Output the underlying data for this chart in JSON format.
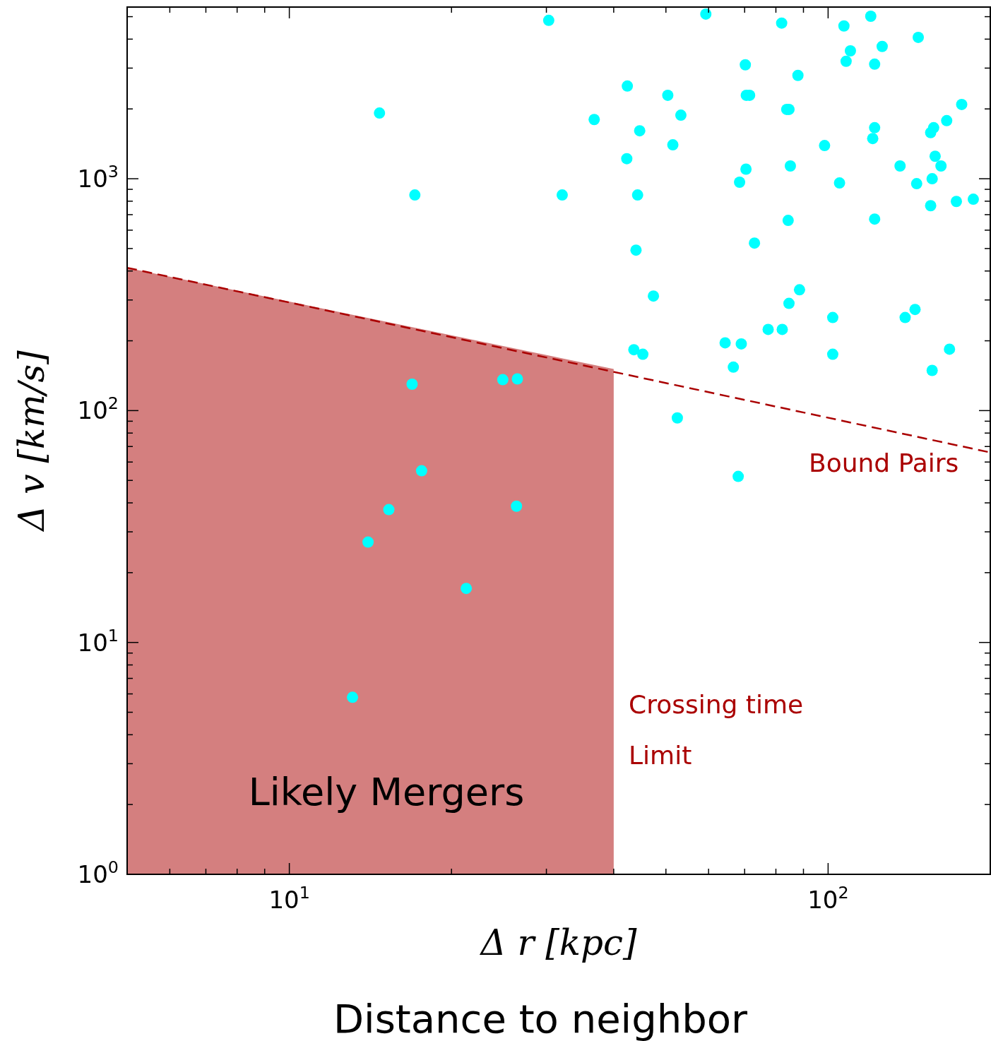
{
  "chart_data": {
    "type": "scatter",
    "xlabel": "Δ r [kpc]",
    "ylabel": "Δ v [km/s]",
    "xlim": [
      5,
      200
    ],
    "ylim": [
      1,
      5500
    ],
    "log": "xy",
    "grid": false,
    "xticks": [
      {
        "value": 6,
        "label": null
      },
      {
        "value": 7,
        "label": null
      },
      {
        "value": 8,
        "label": null
      },
      {
        "value": 9,
        "label": null
      },
      {
        "value": 10,
        "label": "10$^{1}$"
      },
      {
        "value": 20,
        "label": null
      },
      {
        "value": 30,
        "label": null
      },
      {
        "value": 40,
        "label": null
      },
      {
        "value": 50,
        "label": null
      },
      {
        "value": 60,
        "label": null
      },
      {
        "value": 70,
        "label": null
      },
      {
        "value": 80,
        "label": null
      },
      {
        "value": 90,
        "label": null
      },
      {
        "value": 100,
        "label": "10$^{2}$"
      }
    ],
    "yticks": [
      {
        "value": 1,
        "label": "10$^{0}$"
      },
      {
        "value": 2,
        "label": null
      },
      {
        "value": 3,
        "label": null
      },
      {
        "value": 4,
        "label": null
      },
      {
        "value": 5,
        "label": null
      },
      {
        "value": 6,
        "label": null
      },
      {
        "value": 7,
        "label": null
      },
      {
        "value": 8,
        "label": null
      },
      {
        "value": 9,
        "label": null
      },
      {
        "value": 10,
        "label": "10$^{1}$"
      },
      {
        "value": 20,
        "label": null
      },
      {
        "value": 30,
        "label": null
      },
      {
        "value": 40,
        "label": null
      },
      {
        "value": 50,
        "label": null
      },
      {
        "value": 60,
        "label": null
      },
      {
        "value": 70,
        "label": null
      },
      {
        "value": 80,
        "label": null
      },
      {
        "value": 90,
        "label": null
      },
      {
        "value": 100,
        "label": "10$^{2}$"
      },
      {
        "value": 200,
        "label": null
      },
      {
        "value": 300,
        "label": null
      },
      {
        "value": 400,
        "label": null
      },
      {
        "value": 500,
        "label": null
      },
      {
        "value": 600,
        "label": null
      },
      {
        "value": 700,
        "label": null
      },
      {
        "value": 800,
        "label": null
      },
      {
        "value": 900,
        "label": null
      },
      {
        "value": 1000,
        "label": "10$^{3}$"
      },
      {
        "value": 2000,
        "label": null
      },
      {
        "value": 3000,
        "label": null
      },
      {
        "value": 4000,
        "label": null
      },
      {
        "value": 5000,
        "label": null
      }
    ],
    "annotations": [
      "Likely Mergers",
      "Crossing time",
      "Limit",
      "Bound Pairs",
      "Distance to neighbor"
    ],
    "series": [
      {
        "type": "area",
        "color": "#d47f7f",
        "x": [
          5,
          40
        ],
        "values": [
          413,
          151
        ]
      },
      {
        "type": "line",
        "color": "#aa0000",
        "line_style": "dashed",
        "x": [
          5,
          200
        ],
        "values": [
          413,
          66
        ]
      },
      {
        "color": "#00ffff",
        "marker": "circle",
        "x": [
          14.7,
          17.1,
          30.3,
          32.1,
          36.8,
          42.4,
          42.3,
          44.7,
          44.3,
          44.0,
          47.4,
          43.6,
          45.3,
          50.4,
          51.5,
          53.3,
          52.5,
          59.3,
          64.4,
          66.7,
          68.5,
          69.0,
          68.1,
          70.2,
          70.4,
          70.5,
          71.5,
          73.0,
          77.4,
          82.0,
          82.2,
          83.8,
          84.6,
          84.3,
          85.1,
          84.6,
          87.9,
          88.5,
          98.5,
          102,
          102,
          105,
          107,
          108,
          110,
          120,
          122,
          121,
          122,
          122,
          126,
          136,
          139,
          145,
          146,
          147,
          155,
          157,
          155,
          156,
          158,
          162,
          156,
          168,
          166,
          173,
          177,
          186,
          16.9,
          24.9,
          26.5,
          17.6,
          15.3,
          26.4,
          14.0,
          21.3,
          13.1
        ],
        "values": [
          1920,
          851,
          4820,
          851,
          1800,
          2510,
          1220,
          1610,
          851,
          492,
          312,
          183,
          175,
          2290,
          1400,
          1880,
          93,
          5130,
          196,
          154,
          966,
          194,
          52,
          3100,
          1100,
          2290,
          2290,
          528,
          224,
          4690,
          224,
          1990,
          1990,
          661,
          1135,
          290,
          2790,
          332,
          1390,
          252,
          175,
          959,
          4560,
          3210,
          3560,
          5020,
          3120,
          1490,
          1660,
          670,
          3720,
          1135,
          252,
          273,
          952,
          4070,
          1580,
          1660,
          765,
          1000,
          1250,
          1135,
          149,
          184,
          1780,
          798,
          2090,
          816,
          130,
          136,
          137,
          55,
          37.4,
          38.7,
          27.1,
          17.1,
          5.8
        ]
      }
    ]
  }
}
